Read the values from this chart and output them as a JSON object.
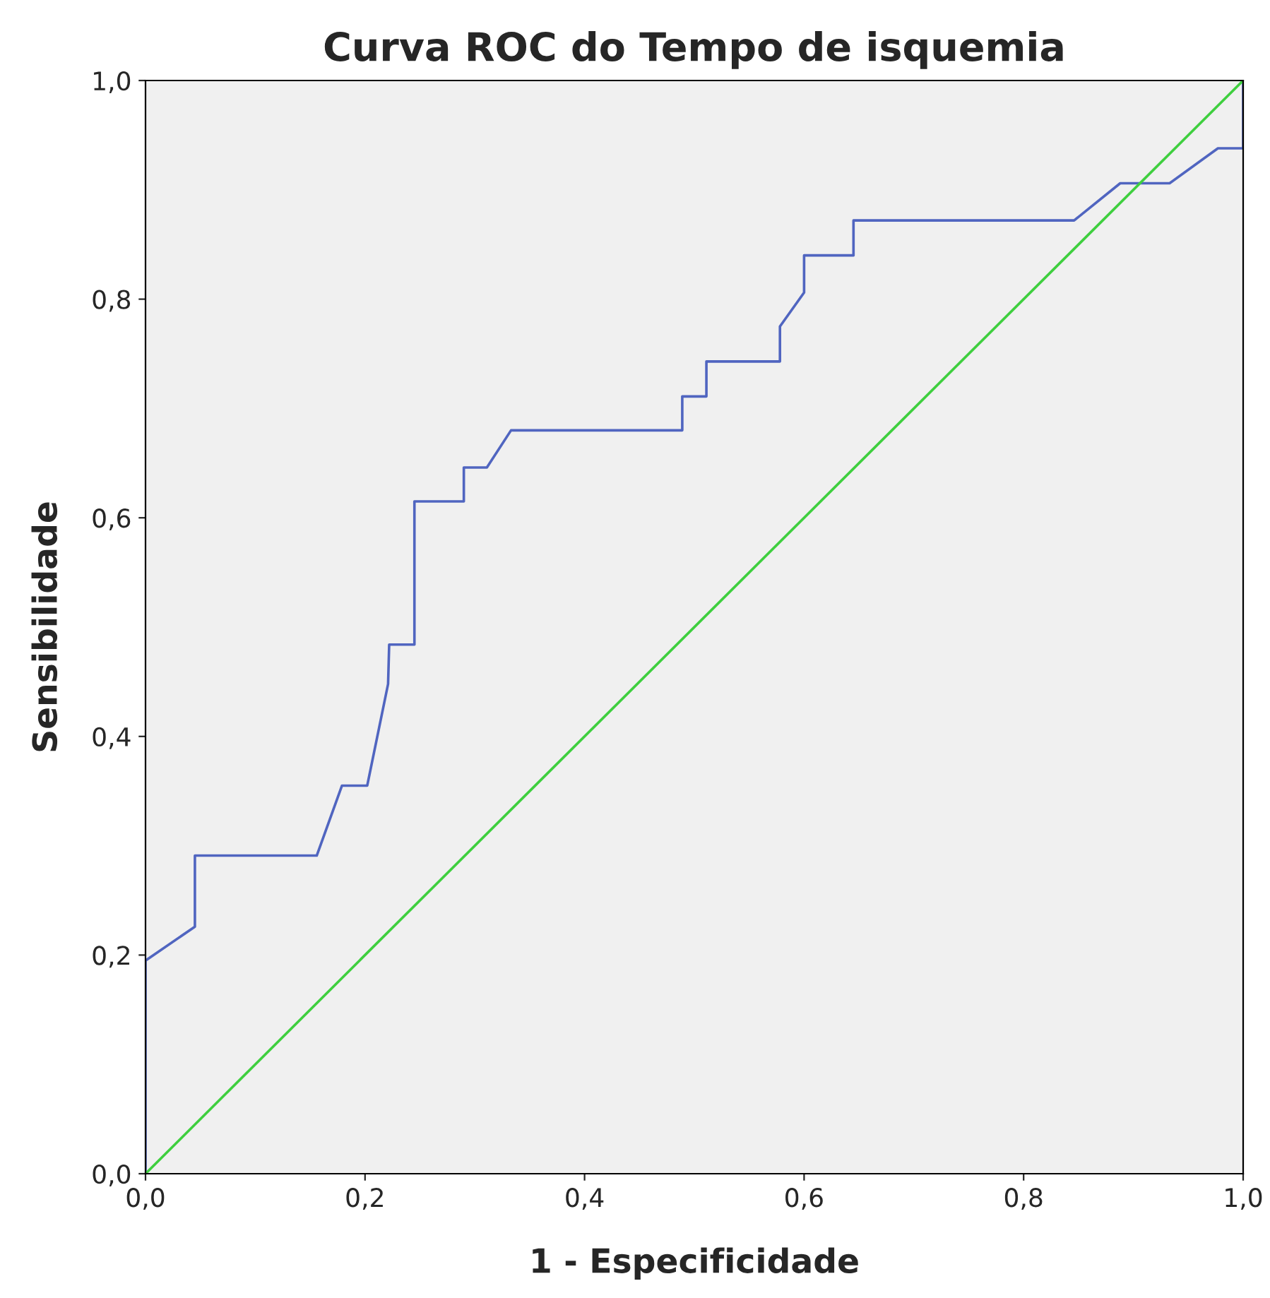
{
  "chart_data": {
    "type": "line",
    "title": "Curva ROC do Tempo de isquemia",
    "xlabel": "1 - Especificidade",
    "ylabel": "Sensibilidade",
    "series": [
      {
        "color": "#5065c0",
        "x": [
          0,
          0,
          0.045,
          0.045,
          0.156,
          0.179,
          0.202,
          0.221,
          0.222,
          0.245,
          0.245,
          0.29,
          0.29,
          0.311,
          0.333,
          0.489,
          0.489,
          0.511,
          0.511,
          0.578,
          0.578,
          0.6,
          0.6,
          0.645,
          0.645,
          0.846,
          0.888,
          0.933,
          0.977,
          1.0,
          1.0
        ],
        "values": [
          0,
          0.195,
          0.226,
          0.291,
          0.291,
          0.355,
          0.355,
          0.448,
          0.484,
          0.484,
          0.615,
          0.615,
          0.646,
          0.646,
          0.68,
          0.68,
          0.711,
          0.711,
          0.743,
          0.743,
          0.775,
          0.806,
          0.84,
          0.84,
          0.872,
          0.872,
          0.906,
          0.906,
          0.938,
          0.938,
          1.0
        ]
      },
      {
        "color": "#3fcf3f",
        "x": [
          0,
          1
        ],
        "values": [
          0,
          1
        ]
      }
    ],
    "xlim": [
      0,
      1
    ],
    "ylim": [
      0,
      1
    ],
    "xticks": [
      {
        "value": 0,
        "label": "0,0"
      },
      {
        "value": 0.2,
        "label": "0,2"
      },
      {
        "value": 0.4,
        "label": "0,4"
      },
      {
        "value": 0.6,
        "label": "0,6"
      },
      {
        "value": 0.8,
        "label": "0,8"
      },
      {
        "value": 1,
        "label": "1,0"
      }
    ],
    "yticks": [
      {
        "value": 0,
        "label": "0,0"
      },
      {
        "value": 0.2,
        "label": "0,2"
      },
      {
        "value": 0.4,
        "label": "0,4"
      },
      {
        "value": 0.6,
        "label": "0,6"
      },
      {
        "value": 0.8,
        "label": "0,8"
      },
      {
        "value": 1,
        "label": "1,0"
      }
    ],
    "grid": false,
    "legend": false
  }
}
